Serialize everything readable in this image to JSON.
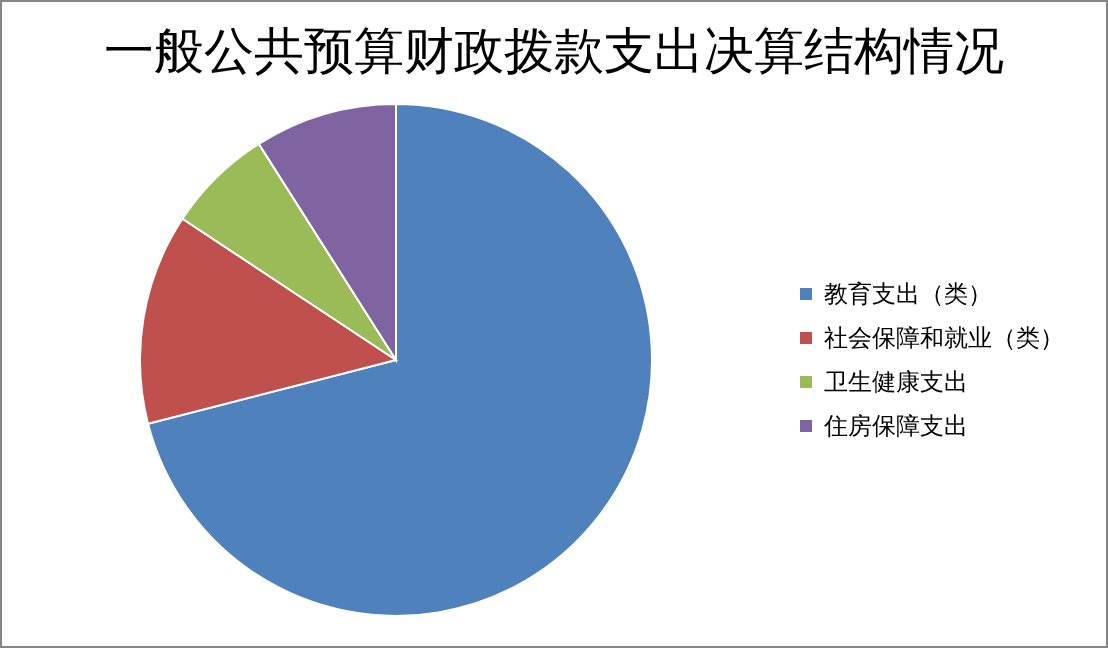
{
  "chart_data": {
    "type": "pie",
    "title": "一般公共预算财政拨款支出决算结构情况",
    "categories": [
      "教育支出（类）",
      "社会保障和就业（类）",
      "卫生健康支出",
      "住房保障支出"
    ],
    "values": [
      71.0,
      13.3,
      6.7,
      9.0
    ],
    "colors": [
      "#4f81bd",
      "#c0504d",
      "#9bbb59",
      "#8064a2"
    ],
    "legend": "right"
  }
}
